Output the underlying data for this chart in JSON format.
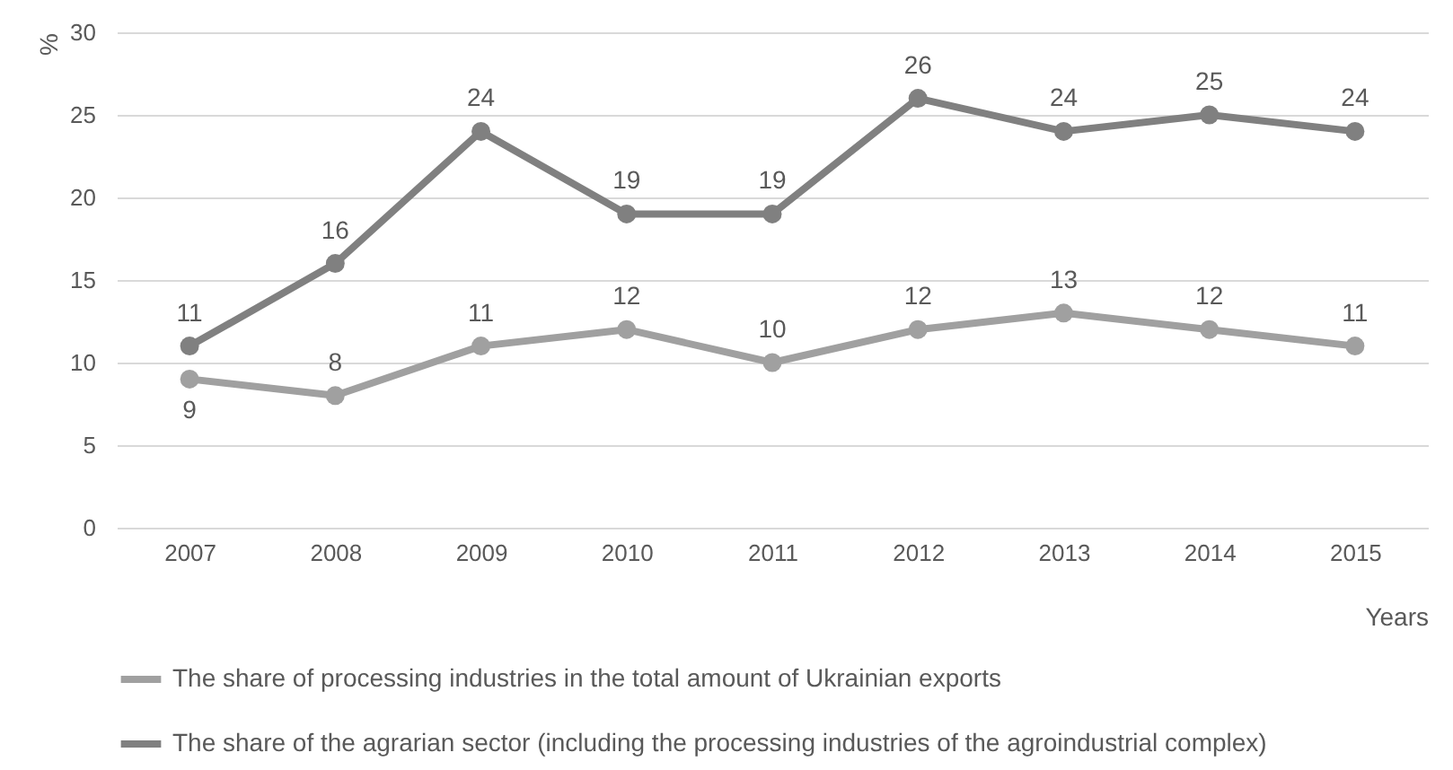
{
  "chart_data": {
    "type": "line",
    "xlabel": "Years",
    "ylabel": "%",
    "categories": [
      "2007",
      "2008",
      "2009",
      "2010",
      "2011",
      "2012",
      "2013",
      "2014",
      "2015"
    ],
    "series": [
      {
        "name": "The share of processing industries in the total amount of Ukrainian exports",
        "color": "#a0a0a0",
        "values": [
          9,
          8,
          11,
          12,
          10,
          12,
          13,
          12,
          11
        ]
      },
      {
        "name": "The share of the agrarian sector (including the processing industries of the agroindustrial complex)",
        "color": "#808080",
        "values": [
          11,
          16,
          24,
          19,
          19,
          26,
          24,
          25,
          24
        ]
      }
    ],
    "ylim": [
      0,
      30
    ],
    "yticks": [
      0,
      5,
      10,
      15,
      20,
      25,
      30
    ],
    "grid": "y",
    "legend": "bottom",
    "marker": "circle",
    "line_style": "solid",
    "data_labels": true
  }
}
